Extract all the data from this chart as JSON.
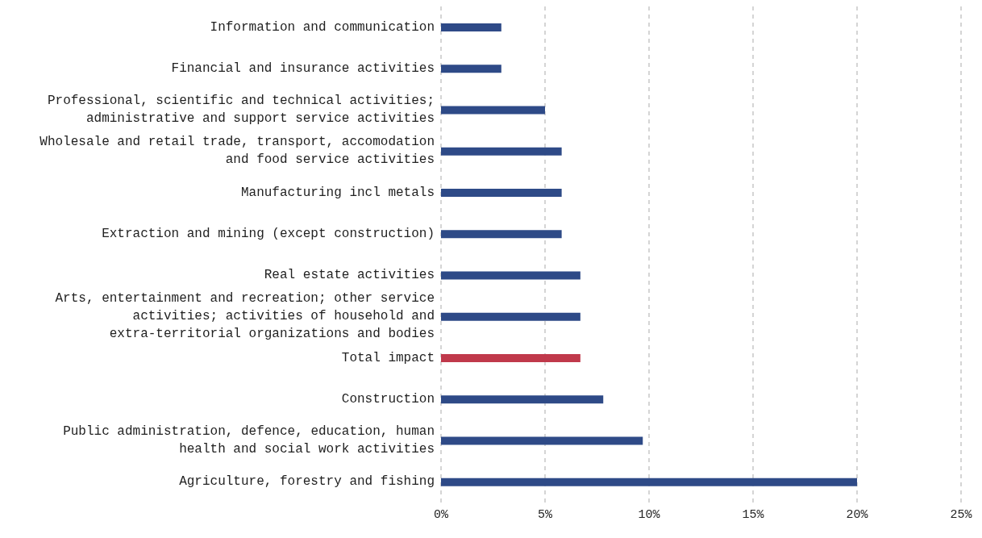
{
  "chart_data": {
    "type": "bar",
    "orientation": "horizontal",
    "categories": [
      "Information and communication",
      "Financial and insurance activities",
      "Professional, scientific and technical activities; administrative and support service activities",
      "Wholesale and retail trade, transport, accomodation and food service activities",
      "Manufacturing incl metals",
      "Extraction and mining (except construction)",
      "Real estate activities",
      "Arts, entertainment and recreation; other service activities; activities of household and extra-territorial organizations and bodies",
      "Total impact",
      "Construction",
      "Public administration, defence, education, human health and social work activities",
      "Agriculture, forestry and fishing"
    ],
    "values": [
      2.9,
      2.9,
      5.0,
      5.8,
      5.8,
      5.8,
      6.7,
      6.7,
      6.7,
      7.8,
      9.7,
      20.0
    ],
    "colors": [
      "#2e4a87",
      "#2e4a87",
      "#2e4a87",
      "#2e4a87",
      "#2e4a87",
      "#2e4a87",
      "#2e4a87",
      "#2e4a87",
      "#c0394b",
      "#2e4a87",
      "#2e4a87",
      "#2e4a87"
    ],
    "xlim": [
      0,
      25
    ],
    "xticks": [
      {
        "value": 0,
        "label": "0%"
      },
      {
        "value": 5,
        "label": "5%"
      },
      {
        "value": 10,
        "label": "10%"
      },
      {
        "value": 15,
        "label": "15%"
      },
      {
        "value": 20,
        "label": "20%"
      },
      {
        "value": 25,
        "label": "25%"
      }
    ],
    "grid": "x"
  }
}
